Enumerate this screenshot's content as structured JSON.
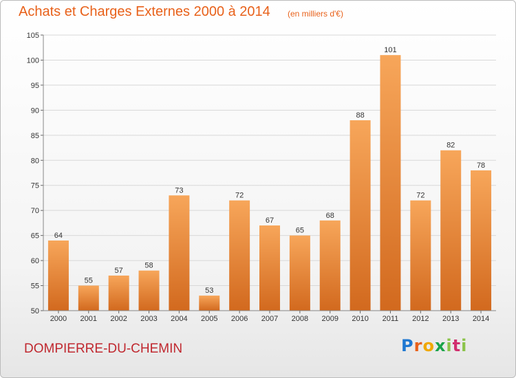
{
  "title": "Achats et Charges Externes 2000 à 2014",
  "subtitle": "(en milliers d'€)",
  "location": "DOMPIERRE-DU-CHEMIN",
  "logo": "Proxiti",
  "colors": {
    "title": "#e8611a",
    "location": "#c0282f",
    "bar_top": "#f7a65a",
    "bar_bottom": "#d2691e"
  },
  "chart_data": {
    "type": "bar",
    "title": "Achats et Charges Externes 2000 à 2014",
    "subtitle": "(en milliers d'€)",
    "categories": [
      "2000",
      "2001",
      "2002",
      "2003",
      "2004",
      "2005",
      "2006",
      "2007",
      "2008",
      "2009",
      "2010",
      "2011",
      "2012",
      "2013",
      "2014"
    ],
    "values": [
      64,
      55,
      57,
      58,
      73,
      53,
      72,
      67,
      65,
      68,
      88,
      101,
      72,
      82,
      78
    ],
    "ylim": [
      50,
      105
    ],
    "yticks": [
      50,
      55,
      60,
      65,
      70,
      75,
      80,
      85,
      90,
      95,
      100,
      105
    ],
    "grid": true
  }
}
